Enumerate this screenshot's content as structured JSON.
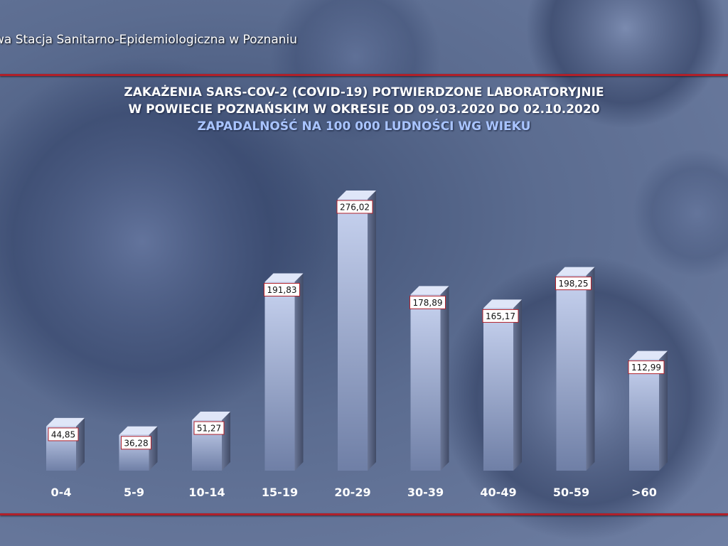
{
  "header": {
    "organization": "wa Stacja Sanitarno-Epidemiologiczna w Poznaniu"
  },
  "title_lines": [
    "ZAKAŻENIA SARS-COV-2 (COVID-19) POTWIERDZONE LABORATORYJNIE",
    "W POWIECIE POZNAŃSKIM W OKRESIE OD 09.03.2020 DO 02.10.2020",
    "ZAPADALNOŚĆ NA 100 000 LUDNOŚCI WG WIEKU"
  ],
  "colors": {
    "accent_line": "#b0202a",
    "subtitle": "#a9c4ff",
    "bar_front_top": "#c8d3f0",
    "bar_front_bottom": "#6f7fa6",
    "label_border": "#b0202a"
  },
  "chart_data": {
    "type": "bar",
    "title": "ZAKAŻENIA SARS-COV-2 (COVID-19) POTWIERDZONE LABORATORYJNIE W POWIECIE POZNAŃSKIM W OKRESIE OD 09.03.2020 DO 02.10.2020",
    "subtitle": "ZAPADALNOŚĆ NA 100 000 LUDNOŚCI WG WIEKU",
    "categories": [
      "0-4",
      "5-9",
      "10-14",
      "15-19",
      "20-29",
      "30-39",
      "40-49",
      "50-59",
      ">60"
    ],
    "values": [
      44.85,
      36.28,
      51.27,
      191.83,
      276.02,
      178.89,
      165.17,
      198.25,
      112.99
    ],
    "value_labels": [
      "44,85",
      "36,28",
      "51,27",
      "191,83",
      "276,02",
      "178,89",
      "165,17",
      "198,25",
      "112,99"
    ],
    "xlabel": "",
    "ylabel": "",
    "grid": false,
    "legend": "none"
  }
}
